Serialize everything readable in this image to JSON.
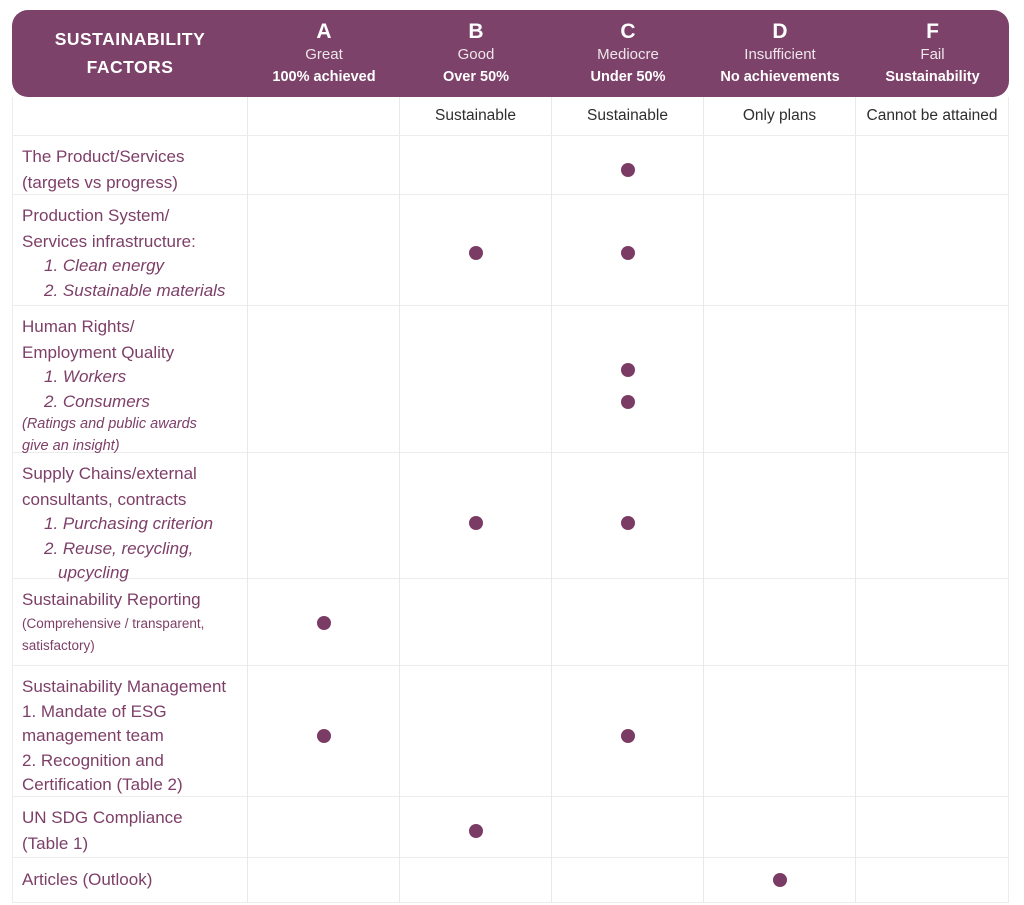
{
  "table": {
    "title": "SUSTAINABILITY\nFACTORS",
    "grades": [
      {
        "letter": "A",
        "name": "Great",
        "qualifier": "100% achieved",
        "descriptor": ""
      },
      {
        "letter": "B",
        "name": "Good",
        "qualifier": "Over 50%",
        "descriptor": "Sustainable"
      },
      {
        "letter": "C",
        "name": "Mediocre",
        "qualifier": "Under 50%",
        "descriptor": "Sustainable"
      },
      {
        "letter": "D",
        "name": "Insufficient",
        "qualifier": "No achievements",
        "descriptor": "Only plans"
      },
      {
        "letter": "F",
        "name": "Fail",
        "qualifier": "Sustainability",
        "descriptor": "Cannot be attained"
      }
    ],
    "rows": [
      {
        "name": "product-services",
        "lines": [
          {
            "t": "The Product/Services",
            "s": "main"
          },
          {
            "t": "(targets vs progress)",
            "s": "main"
          }
        ],
        "dots": [
          "C"
        ]
      },
      {
        "name": "production-system",
        "lines": [
          {
            "t": "Production System/",
            "s": "main"
          },
          {
            "t": "Services infrastructure:",
            "s": "main"
          },
          {
            "t": "1. Clean energy",
            "s": "list"
          },
          {
            "t": "2. Sustainable materials",
            "s": "list"
          }
        ],
        "dots": [
          "B",
          "C"
        ]
      },
      {
        "name": "human-rights",
        "lines": [
          {
            "t": "Human Rights/",
            "s": "main"
          },
          {
            "t": "Employment Quality",
            "s": "main"
          },
          {
            "t": "1. Workers",
            "s": "list"
          },
          {
            "t": "2. Consumers",
            "s": "list"
          },
          {
            "t": "(Ratings and public awards",
            "s": "note"
          },
          {
            "t": "give an insight)",
            "s": "note"
          }
        ],
        "dots": [
          "C",
          "C"
        ]
      },
      {
        "name": "supply-chains",
        "lines": [
          {
            "t": "Supply Chains/external",
            "s": "main"
          },
          {
            "t": "consultants, contracts",
            "s": "main"
          },
          {
            "t": "1. Purchasing  criterion",
            "s": "list"
          },
          {
            "t": "2. Reuse, recycling,",
            "s": "list"
          },
          {
            "t": "upcycling",
            "s": "list2"
          }
        ],
        "dots": [
          "B",
          "C"
        ]
      },
      {
        "name": "sustainability-reporting",
        "lines": [
          {
            "t": "Sustainability Reporting",
            "s": "main"
          },
          {
            "t": "(Comprehensive / transparent,",
            "s": "small"
          },
          {
            "t": "satisfactory)",
            "s": "small"
          }
        ],
        "dots": [
          "A"
        ]
      },
      {
        "name": "sustainability-management",
        "lines": [
          {
            "t": "Sustainability Management",
            "s": "main"
          },
          {
            "t": "1. Mandate of ESG",
            "s": "plain"
          },
          {
            "t": "management team",
            "s": "plain"
          },
          {
            "t": "2. Recognition and",
            "s": "plain"
          },
          {
            "t": "Certification (Table 2)",
            "s": "plain"
          }
        ],
        "dots": [
          "A",
          "C"
        ]
      },
      {
        "name": "un-sdg-compliance",
        "lines": [
          {
            "t": "UN SDG Compliance",
            "s": "main"
          },
          {
            "t": "(Table 1)",
            "s": "main"
          }
        ],
        "dots": [
          "B"
        ]
      },
      {
        "name": "articles-outlook",
        "lines": [
          {
            "t": "Articles (Outlook)",
            "s": "main"
          }
        ],
        "dots": [
          "D"
        ]
      }
    ]
  },
  "colors": {
    "header_bg": "#7C4269",
    "label_text": "#7D3F68",
    "dot": "#7A3C64",
    "grid_line": "#ECECEC",
    "descriptor_text": "#2E2E2E"
  },
  "chart_data": {
    "type": "table",
    "title": "SUSTAINABILITY FACTORS",
    "columns": [
      "A — Great — 100% achieved",
      "B — Good — Over 50% Sustainable",
      "C — Mediocre — Under 50% Sustainable",
      "D — Insufficient — No achievements — Only plans",
      "F — Fail — Sustainability — Cannot be attained"
    ],
    "rows": [
      {
        "factor": "The Product/Services (targets vs progress)",
        "marks": [
          "C"
        ]
      },
      {
        "factor": "Production System/Services infrastructure: 1. Clean energy 2. Sustainable materials",
        "marks": [
          "B",
          "C"
        ]
      },
      {
        "factor": "Human Rights/Employment Quality 1. Workers 2. Consumers (Ratings and public awards give an insight)",
        "marks": [
          "C",
          "C"
        ]
      },
      {
        "factor": "Supply Chains/external consultants, contracts 1. Purchasing criterion 2. Reuse, recycling, upcycling",
        "marks": [
          "B",
          "C"
        ]
      },
      {
        "factor": "Sustainability Reporting (Comprehensive / transparent, satisfactory)",
        "marks": [
          "A"
        ]
      },
      {
        "factor": "Sustainability Management 1. Mandate of ESG management team 2. Recognition and Certification (Table 2)",
        "marks": [
          "A",
          "C"
        ]
      },
      {
        "factor": "UN SDG Compliance (Table 1)",
        "marks": [
          "B"
        ]
      },
      {
        "factor": "Articles (Outlook)",
        "marks": [
          "D"
        ]
      }
    ],
    "legend_position": "top",
    "grid": true
  }
}
